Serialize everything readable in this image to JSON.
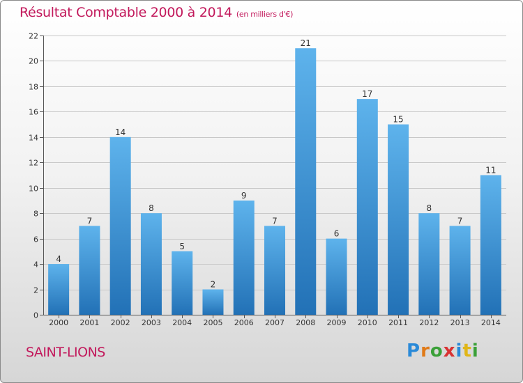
{
  "title": "Résultat Comptable 2000 à 2014",
  "subtitle": "(en milliers d'€)",
  "commune": "SAINT-LIONS",
  "logo": {
    "letters": [
      "P",
      "r",
      "o",
      "x",
      "i",
      "t",
      "i"
    ]
  },
  "colors": {
    "bar_top": "#5eb3ec",
    "bar_bottom": "#2271b6",
    "title": "#c2185b",
    "grid": "#c8c8c8"
  },
  "chart_data": {
    "type": "bar",
    "title": "Résultat Comptable 2000 à 2014",
    "subtitle": "(en milliers d'€)",
    "xlabel": "",
    "ylabel": "",
    "categories": [
      "2000",
      "2001",
      "2002",
      "2003",
      "2004",
      "2005",
      "2006",
      "2007",
      "2008",
      "2009",
      "2010",
      "2011",
      "2012",
      "2013",
      "2014"
    ],
    "values": [
      4,
      7,
      14,
      8,
      5,
      2,
      9,
      7,
      21,
      6,
      17,
      15,
      8,
      7,
      11
    ],
    "ylim": [
      0,
      22
    ],
    "yticks": [
      0,
      2,
      4,
      6,
      8,
      10,
      12,
      14,
      16,
      18,
      20,
      22
    ],
    "grid": true,
    "legend": "none"
  }
}
